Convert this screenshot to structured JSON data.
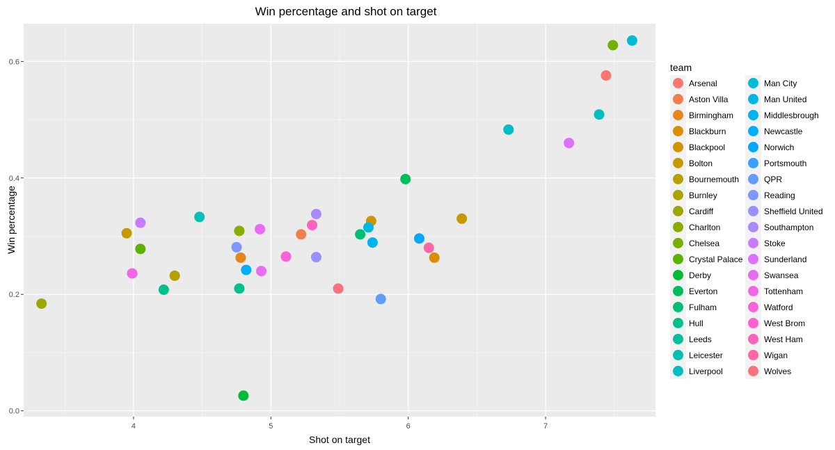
{
  "chart_data": {
    "type": "scatter",
    "title": "Win percentage and shot on target",
    "xlabel": "Shot on target",
    "ylabel": "Win percentage",
    "xlim": [
      3.2,
      7.8
    ],
    "ylim": [
      -0.01,
      0.665
    ],
    "x_ticks": [
      4,
      5,
      6,
      7
    ],
    "y_ticks": [
      0.0,
      0.2,
      0.4,
      0.6
    ],
    "x_tick_labels": [
      "4",
      "5",
      "6",
      "7"
    ],
    "y_tick_labels": [
      "0.0",
      "0.2",
      "0.4",
      "0.6"
    ],
    "grid": true,
    "legend_title": "team",
    "legend_position": "right",
    "series": [
      {
        "name": "Arsenal",
        "color": "#F8766D",
        "points": [
          [
            7.44,
            0.576
          ]
        ]
      },
      {
        "name": "Aston Villa",
        "color": "#F17E4F",
        "points": [
          [
            5.22,
            0.303
          ]
        ]
      },
      {
        "name": "Birmingham",
        "color": "#E7861B",
        "points": [
          [
            4.78,
            0.263
          ]
        ]
      },
      {
        "name": "Blackburn",
        "color": "#DC8E00",
        "points": [
          [
            6.19,
            0.263
          ]
        ]
      },
      {
        "name": "Blackpool",
        "color": "#D09400",
        "points": [
          [
            5.73,
            0.326
          ]
        ]
      },
      {
        "name": "Bolton",
        "color": "#C49A00",
        "points": [
          [
            3.95,
            0.305
          ],
          [
            6.39,
            0.33
          ]
        ]
      },
      {
        "name": "Bournemouth",
        "color": "#B79F00",
        "points": [
          [
            4.3,
            0.232
          ]
        ]
      },
      {
        "name": "Burnley",
        "color": "#A9A400",
        "points": []
      },
      {
        "name": "Cardiff",
        "color": "#9AA800",
        "points": [
          [
            3.33,
            0.184
          ]
        ]
      },
      {
        "name": "Charlton",
        "color": "#8AAB00",
        "points": [
          [
            4.77,
            0.309
          ]
        ]
      },
      {
        "name": "Chelsea",
        "color": "#75AF00",
        "points": [
          [
            7.49,
            0.628
          ]
        ]
      },
      {
        "name": "Crystal Palace",
        "color": "#5BB300",
        "points": [
          [
            4.05,
            0.278
          ]
        ]
      },
      {
        "name": "Derby",
        "color": "#00BA38",
        "points": [
          [
            4.8,
            0.026
          ]
        ]
      },
      {
        "name": "Everton",
        "color": "#00BD5C",
        "points": [
          [
            5.98,
            0.398
          ]
        ]
      },
      {
        "name": "Fulham",
        "color": "#00BF74",
        "points": [
          [
            5.65,
            0.303
          ]
        ]
      },
      {
        "name": "Hull",
        "color": "#00C08B",
        "points": [
          [
            4.22,
            0.208
          ],
          [
            4.77,
            0.21
          ]
        ]
      },
      {
        "name": "Leeds",
        "color": "#00C0A0",
        "points": []
      },
      {
        "name": "Leicester",
        "color": "#00C0B3",
        "points": [
          [
            4.48,
            0.333
          ]
        ]
      },
      {
        "name": "Liverpool",
        "color": "#00BEC4",
        "points": [
          [
            6.73,
            0.483
          ],
          [
            7.39,
            0.509
          ]
        ]
      },
      {
        "name": "Man City",
        "color": "#00BCD4",
        "points": [
          [
            7.63,
            0.636
          ]
        ]
      },
      {
        "name": "Man United",
        "color": "#00B8E3",
        "points": [
          [
            5.71,
            0.315
          ]
        ]
      },
      {
        "name": "Middlesbrough",
        "color": "#00B4EF",
        "points": [
          [
            5.74,
            0.289
          ]
        ]
      },
      {
        "name": "Newcastle",
        "color": "#00AEF9",
        "points": [
          [
            4.82,
            0.242
          ]
        ]
      },
      {
        "name": "Norwich",
        "color": "#00A9FF",
        "points": [
          [
            6.08,
            0.296
          ]
        ]
      },
      {
        "name": "Portsmouth",
        "color": "#35A2FF",
        "points": []
      },
      {
        "name": "QPR",
        "color": "#619CFF",
        "points": [
          [
            5.8,
            0.192
          ]
        ]
      },
      {
        "name": "Reading",
        "color": "#7F96FF",
        "points": [
          [
            4.75,
            0.281
          ]
        ]
      },
      {
        "name": "Sheffield United",
        "color": "#9890FF",
        "points": [
          [
            5.33,
            0.264
          ]
        ]
      },
      {
        "name": "Southampton",
        "color": "#AC88FF",
        "points": [
          [
            5.33,
            0.338
          ]
        ]
      },
      {
        "name": "Stoke",
        "color": "#C77CFF",
        "points": [
          [
            4.05,
            0.323
          ]
        ]
      },
      {
        "name": "Sunderland",
        "color": "#DB72FB",
        "points": [
          [
            7.17,
            0.46
          ]
        ]
      },
      {
        "name": "Swansea",
        "color": "#E76BF3",
        "points": [
          [
            4.92,
            0.312
          ],
          [
            4.93,
            0.24
          ]
        ]
      },
      {
        "name": "Tottenham",
        "color": "#F166E8",
        "points": [
          [
            3.99,
            0.236
          ]
        ]
      },
      {
        "name": "Watford",
        "color": "#FA62DB",
        "points": [
          [
            5.11,
            0.265
          ]
        ]
      },
      {
        "name": "West Brom",
        "color": "#FF61CC",
        "points": []
      },
      {
        "name": "West Ham",
        "color": "#FF62BC",
        "points": [
          [
            5.3,
            0.319
          ]
        ]
      },
      {
        "name": "Wigan",
        "color": "#FF67A4",
        "points": [
          [
            6.15,
            0.28
          ]
        ]
      },
      {
        "name": "Wolves",
        "color": "#FC717F",
        "points": [
          [
            5.49,
            0.21
          ]
        ]
      }
    ]
  }
}
